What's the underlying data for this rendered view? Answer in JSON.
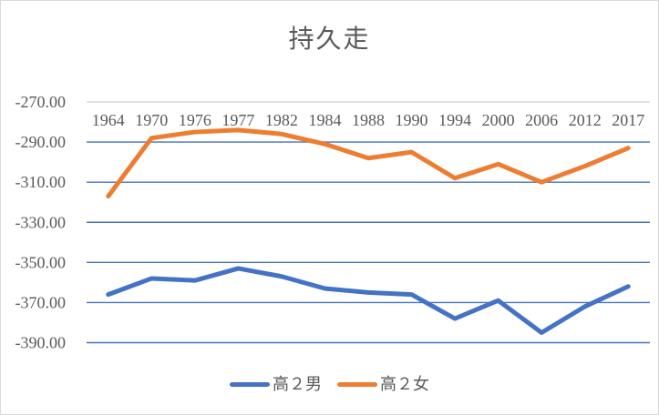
{
  "chart_data": {
    "type": "line",
    "title": "持久走",
    "xlabel": "",
    "ylabel": "",
    "categories": [
      "1964",
      "1970",
      "1976",
      "1977",
      "1982",
      "1984",
      "1988",
      "1990",
      "1994",
      "2000",
      "2006",
      "2012",
      "2017"
    ],
    "series": [
      {
        "name": "高２男",
        "color": "#4472C4",
        "values": [
          -366,
          -358,
          -359,
          -353,
          -357,
          -363,
          -365,
          -366,
          -378,
          -369,
          -385,
          -372,
          -362
        ]
      },
      {
        "name": "高２女",
        "color": "#ED7D31",
        "values": [
          -317,
          -288,
          -285,
          -284,
          -286,
          -291,
          -298,
          -295,
          -308,
          -301,
          -310,
          -302,
          -293
        ]
      }
    ],
    "ylim": [
      -390,
      -270
    ],
    "yticks": [
      -270,
      -290,
      -310,
      -330,
      -350,
      -370,
      -390
    ],
    "ytick_decimals": 2,
    "grid": true,
    "gridline_color": "#4472C4",
    "axis_line_color": "#D9D9D9",
    "label_color": "#595959",
    "background_color": "#FFFFFF",
    "border_color": "#D9D9D9",
    "legend_position": "bottom"
  }
}
